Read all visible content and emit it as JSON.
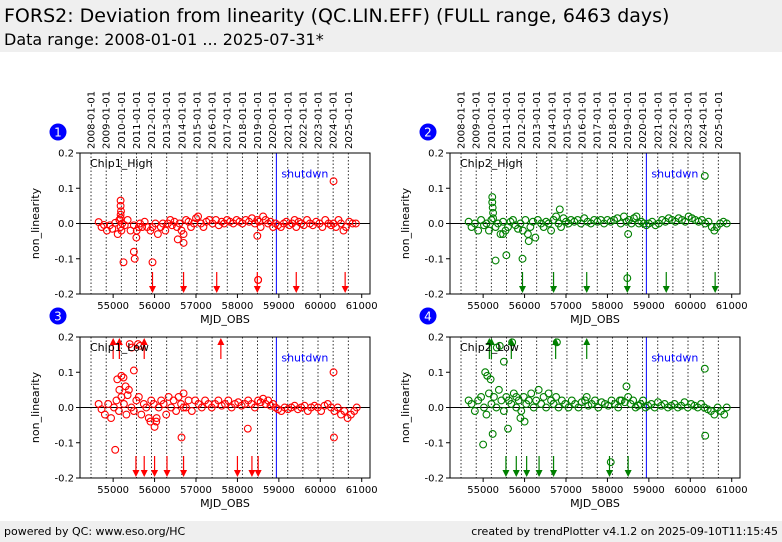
{
  "header": {
    "title": "FORS2: Deviation from linearity (QC.LIN.EFF) (FULL range, 6463 days)",
    "subtitle": "Data range: 2008-01-01 ... 2025-07-31*"
  },
  "footer": {
    "left": "powered by QC: www.eso.org/HC",
    "right": "created by trendPlotter v4.1.2 on 2025-09-10T11:15:45"
  },
  "colors": {
    "red": "#ff0000",
    "green": "#008000",
    "shutdown": "#0000ff",
    "badge": "#0000ff"
  },
  "chart_data": [
    {
      "type": "scatter",
      "badge": "1",
      "label": "Chip1_High",
      "color": "#ff0000",
      "xlabel": "MJD_OBS",
      "ylabel": "non_linearity",
      "xlim": [
        54200,
        61200
      ],
      "ylim": [
        -0.2,
        0.2
      ],
      "xticks": [
        55000,
        56000,
        57000,
        58000,
        59000,
        60000,
        61000
      ],
      "yticks": [
        -0.2,
        -0.1,
        0.0,
        0.1,
        0.2
      ],
      "shutdown": {
        "x": 58940,
        "label": "shutdwn"
      },
      "x": [
        54650,
        54720,
        54780,
        54850,
        54920,
        54980,
        55050,
        55110,
        55150,
        55180,
        55200,
        55220,
        55280,
        55350,
        55420,
        55500,
        55560,
        55620,
        55650,
        55700,
        55760,
        55820,
        55900,
        55950,
        56020,
        56080,
        56150,
        56200,
        56260,
        56320,
        56380,
        56420,
        56480,
        56540,
        56600,
        56650,
        56700,
        56760,
        56820,
        56880,
        56950,
        57000,
        57050,
        57120,
        57180,
        57250,
        57320,
        57400,
        57480,
        57550,
        57620,
        57680,
        57750,
        57820,
        57900,
        57980,
        58050,
        58120,
        58200,
        58280,
        58350,
        58420,
        58480,
        58520,
        58560,
        58620,
        58680,
        58740,
        58800,
        58860,
        58920,
        58980,
        59050,
        59120,
        59180,
        59250,
        59320,
        59380,
        59420,
        59480,
        59540,
        59600,
        59680,
        59750,
        59820,
        59900,
        59980,
        60050,
        60120,
        60200,
        60260,
        60320,
        60380,
        60440,
        60500,
        60560,
        60620,
        60700,
        60780,
        60860,
        55180,
        55180,
        55190,
        55180,
        55180,
        55250,
        55500,
        55520,
        55570,
        55950,
        56560,
        56700,
        58480,
        58500,
        58500,
        60320
      ],
      "y": [
        0.004,
        -0.01,
        -0.004,
        -0.02,
        -0.005,
        -0.015,
        0.002,
        -0.03,
        0.01,
        -0.01,
        -0.02,
        0.0,
        -0.005,
        0.01,
        -0.02,
        -0.005,
        -0.04,
        -0.01,
        0.0,
        -0.01,
        0.005,
        -0.01,
        -0.02,
        -0.01,
        0.0,
        -0.03,
        -0.01,
        0.0,
        -0.02,
        0.0,
        0.01,
        -0.005,
        0.005,
        -0.01,
        0.0,
        -0.02,
        -0.03,
        0.01,
        0.005,
        -0.01,
        0.0,
        0.015,
        0.02,
        0.0,
        -0.01,
        0.005,
        0.01,
        0.0,
        0.01,
        -0.005,
        0.005,
        0.0,
        0.01,
        0.005,
        0.0,
        0.01,
        0.005,
        0.0,
        0.01,
        0.005,
        0.015,
        0.0,
        0.01,
        0.005,
        -0.01,
        0.02,
        0.01,
        0.0,
        0.005,
        -0.01,
        0.0,
        -0.005,
        -0.01,
        0.0,
        0.005,
        -0.005,
        0.0,
        0.01,
        -0.01,
        0.005,
        0.0,
        -0.005,
        0.01,
        0.0,
        -0.005,
        0.005,
        0.0,
        -0.01,
        0.01,
        0.0,
        -0.005,
        0.0,
        -0.01,
        0.01,
        0.0,
        -0.02,
        -0.01,
        0.005,
        0.0,
        0.0,
        0.065,
        0.05,
        0.035,
        0.025,
        0.015,
        -0.11,
        -0.08,
        -0.1,
        -0.02,
        -0.11,
        -0.045,
        -0.055,
        -0.035,
        -0.16,
        -0.16,
        0.12
      ],
      "arrows_up": [],
      "arrows_down": [
        55950,
        56700,
        57500,
        58480,
        59420,
        60600
      ]
    },
    {
      "type": "scatter",
      "badge": "2",
      "label": "Chip2_High",
      "color": "#008000",
      "xlabel": "MJD_OBS",
      "ylabel": "non_linearity",
      "xlim": [
        54200,
        61200
      ],
      "ylim": [
        -0.2,
        0.2
      ],
      "xticks": [
        55000,
        56000,
        57000,
        58000,
        59000,
        60000,
        61000
      ],
      "yticks": [
        -0.2,
        -0.1,
        0.0,
        0.1,
        0.2
      ],
      "shutdown": {
        "x": 58940,
        "label": "shutdwn"
      },
      "x": [
        54650,
        54720,
        54800,
        54880,
        54950,
        55020,
        55080,
        55140,
        55200,
        55240,
        55300,
        55360,
        55420,
        55480,
        55540,
        55600,
        55660,
        55720,
        55780,
        55840,
        55900,
        55960,
        56020,
        56080,
        56140,
        56200,
        56260,
        56320,
        56400,
        56460,
        56520,
        56580,
        56640,
        56700,
        56760,
        56820,
        56880,
        56940,
        57000,
        57060,
        57120,
        57200,
        57280,
        57360,
        57440,
        57520,
        57600,
        57680,
        57760,
        57840,
        57920,
        58000,
        58080,
        58160,
        58240,
        58320,
        58400,
        58460,
        58520,
        58580,
        58640,
        58700,
        58760,
        58820,
        58880,
        58940,
        59000,
        59080,
        59160,
        59240,
        59320,
        59400,
        59480,
        59560,
        59640,
        59720,
        59800,
        59880,
        59960,
        60040,
        60120,
        60200,
        60280,
        60360,
        60440,
        60520,
        60580,
        60640,
        60720,
        60800,
        60880,
        55220,
        55220,
        55230,
        55240,
        55300,
        55480,
        55560,
        55950,
        56100,
        56850,
        58480,
        58500,
        60350
      ],
      "y": [
        0.005,
        -0.01,
        0.0,
        -0.02,
        0.01,
        -0.005,
        0.0,
        -0.02,
        0.01,
        0.015,
        -0.01,
        0.0,
        -0.03,
        0.005,
        -0.02,
        -0.01,
        0.005,
        0.01,
        -0.005,
        -0.015,
        0.0,
        -0.02,
        0.01,
        -0.03,
        -0.01,
        0.005,
        -0.04,
        0.01,
        0.0,
        -0.01,
        0.005,
        0.0,
        -0.02,
        0.01,
        0.02,
        0.0,
        -0.01,
        0.015,
        0.005,
        0.0,
        0.01,
        0.005,
        0.01,
        0.0,
        0.015,
        0.005,
        0.0,
        0.01,
        0.005,
        0.01,
        0.0,
        0.01,
        0.005,
        0.01,
        0.015,
        0.0,
        0.02,
        0.005,
        0.01,
        0.0,
        0.015,
        0.02,
        0.0,
        0.005,
        0.0,
        -0.005,
        0.0,
        0.005,
        -0.005,
        0.0,
        0.01,
        0.005,
        0.015,
        0.01,
        0.005,
        0.015,
        0.01,
        0.005,
        0.02,
        0.015,
        0.01,
        0.005,
        0.01,
        0.0,
        0.005,
        -0.01,
        -0.02,
        -0.01,
        0.0,
        0.005,
        0.0,
        0.075,
        0.06,
        0.045,
        0.03,
        -0.105,
        -0.03,
        -0.09,
        -0.1,
        -0.05,
        0.04,
        -0.155,
        -0.03,
        0.135
      ],
      "arrows_up": [],
      "arrows_down": [
        55950,
        56700,
        57500,
        58480,
        59420,
        60600
      ]
    },
    {
      "type": "scatter",
      "badge": "3",
      "label": "Chip1_Low",
      "color": "#ff0000",
      "xlabel": "MJD_OBS",
      "ylabel": "non_linearity",
      "xlim": [
        54200,
        61200
      ],
      "ylim": [
        -0.2,
        0.2
      ],
      "xticks": [
        55000,
        56000,
        57000,
        58000,
        59000,
        60000,
        61000
      ],
      "yticks": [
        -0.2,
        -0.1,
        0.0,
        0.1,
        0.2
      ],
      "shutdown": {
        "x": 58940,
        "label": "shutdwn"
      },
      "x": [
        54650,
        54720,
        54800,
        54880,
        54950,
        55020,
        55080,
        55140,
        55200,
        55260,
        55320,
        55380,
        55440,
        55500,
        55560,
        55620,
        55680,
        55740,
        55800,
        55860,
        55920,
        55980,
        56040,
        56100,
        56160,
        56220,
        56280,
        56340,
        56400,
        56460,
        56520,
        56580,
        56640,
        56700,
        56760,
        56820,
        56900,
        56980,
        57060,
        57140,
        57220,
        57300,
        57380,
        57460,
        57540,
        57620,
        57700,
        57780,
        57860,
        57940,
        58020,
        58100,
        58180,
        58260,
        58340,
        58420,
        58500,
        58560,
        58620,
        58680,
        58740,
        58800,
        58860,
        58920,
        58980,
        59060,
        59140,
        59220,
        59300,
        59380,
        59460,
        59540,
        59620,
        59700,
        59780,
        59860,
        59940,
        60020,
        60100,
        60180,
        60260,
        60340,
        60420,
        60500,
        60580,
        60660,
        60740,
        60820,
        60880,
        55050,
        55100,
        55150,
        55200,
        55250,
        55300,
        55350,
        55400,
        55450,
        55500,
        55600,
        55650,
        55900,
        56000,
        56050,
        56650,
        56700,
        58250,
        60320,
        60330
      ],
      "y": [
        0.01,
        -0.005,
        -0.02,
        0.01,
        -0.03,
        0.0,
        0.02,
        -0.01,
        0.03,
        0.01,
        -0.02,
        0.05,
        0.0,
        -0.01,
        0.02,
        0.03,
        -0.02,
        0.01,
        0.0,
        -0.03,
        0.02,
        0.01,
        -0.04,
        0.0,
        0.02,
        0.01,
        -0.02,
        0.03,
        0.0,
        0.02,
        -0.01,
        0.03,
        0.01,
        0.04,
        0.0,
        0.02,
        -0.01,
        0.02,
        0.01,
        0.0,
        0.02,
        0.01,
        0.0,
        0.01,
        0.02,
        0.005,
        0.01,
        0.02,
        0.0,
        0.01,
        0.015,
        0.005,
        0.01,
        0.02,
        0.01,
        0.0,
        0.02,
        0.015,
        0.025,
        0.01,
        0.02,
        0.005,
        0.01,
        0.0,
        -0.005,
        -0.01,
        0.0,
        -0.005,
        0.0,
        0.005,
        -0.005,
        0.0,
        0.005,
        -0.01,
        0.0,
        0.005,
        0.0,
        -0.01,
        0.005,
        0.01,
        0.0,
        -0.01,
        0.0,
        -0.02,
        -0.01,
        -0.03,
        -0.02,
        -0.01,
        0.0,
        -0.12,
        0.08,
        0.05,
        0.09,
        0.085,
        0.06,
        0.035,
        0.18,
        0.17,
        0.105,
        0.18,
        0.175,
        -0.04,
        -0.055,
        -0.03,
        -0.085,
        0.0,
        -0.06,
        0.1,
        -0.085
      ],
      "arrows_up": [
        55000,
        55150,
        55750,
        57600
      ],
      "arrows_down": [
        55550,
        55750,
        56000,
        56300,
        56700,
        58000,
        58350,
        58500
      ]
    },
    {
      "type": "scatter",
      "badge": "4",
      "label": "Chip2_Low",
      "color": "#008000",
      "xlabel": "MJD_OBS",
      "ylabel": "non_linearity",
      "xlim": [
        54200,
        61200
      ],
      "ylim": [
        -0.2,
        0.2
      ],
      "xticks": [
        55000,
        56000,
        57000,
        58000,
        59000,
        60000,
        61000
      ],
      "yticks": [
        -0.2,
        -0.1,
        0.0,
        0.1,
        0.2
      ],
      "shutdown": {
        "x": 58940,
        "label": "shutdwn"
      },
      "x": [
        54650,
        54720,
        54800,
        54880,
        54950,
        55020,
        55080,
        55140,
        55200,
        55260,
        55320,
        55380,
        55440,
        55500,
        55560,
        55620,
        55680,
        55740,
        55800,
        55860,
        55920,
        55980,
        56040,
        56100,
        56160,
        56220,
        56280,
        56340,
        56400,
        56460,
        56520,
        56580,
        56640,
        56700,
        56760,
        56820,
        56900,
        56980,
        57060,
        57140,
        57220,
        57300,
        57380,
        57460,
        57540,
        57620,
        57700,
        57780,
        57860,
        57940,
        58020,
        58100,
        58180,
        58260,
        58340,
        58420,
        58500,
        58560,
        58620,
        58680,
        58740,
        58800,
        58860,
        58920,
        58980,
        59060,
        59140,
        59220,
        59300,
        59380,
        59460,
        59540,
        59620,
        59700,
        59780,
        59860,
        59940,
        60020,
        60100,
        60180,
        60260,
        60340,
        60420,
        60500,
        60580,
        60660,
        60740,
        60820,
        60880,
        55000,
        55050,
        55100,
        55180,
        55230,
        55330,
        55400,
        55500,
        55600,
        55700,
        55800,
        55900,
        56000,
        56780,
        57500,
        58080,
        58300,
        58460,
        60350,
        60360
      ],
      "y": [
        0.02,
        0.01,
        -0.01,
        0.02,
        0.03,
        0.0,
        -0.02,
        0.04,
        0.01,
        0.03,
        0.0,
        0.05,
        0.02,
        -0.01,
        0.03,
        0.02,
        0.01,
        0.04,
        0.0,
        0.02,
        -0.01,
        0.03,
        0.01,
        0.02,
        0.04,
        0.0,
        0.02,
        0.05,
        0.01,
        0.03,
        0.0,
        0.04,
        0.02,
        0.01,
        0.03,
        0.0,
        0.02,
        0.01,
        0.0,
        0.02,
        0.01,
        0.0,
        0.015,
        0.02,
        0.005,
        0.01,
        0.02,
        0.0,
        0.015,
        0.01,
        0.005,
        0.02,
        0.01,
        0.0,
        0.02,
        0.015,
        0.03,
        0.01,
        0.02,
        0.0,
        0.005,
        0.01,
        0.02,
        0.0,
        0.005,
        0.01,
        0.0,
        0.015,
        0.005,
        0.01,
        0.0,
        0.005,
        0.01,
        0.0,
        0.005,
        0.015,
        0.0,
        0.01,
        0.005,
        0.0,
        0.01,
        0.0,
        -0.005,
        -0.01,
        -0.02,
        0.0,
        -0.01,
        -0.02,
        0.0,
        -0.105,
        0.1,
        0.09,
        0.08,
        -0.075,
        0.17,
        0.175,
        0.13,
        -0.06,
        0.185,
        0.03,
        -0.03,
        -0.04,
        0.185,
        0.03,
        -0.155,
        0.02,
        0.06,
        0.11,
        -0.08
      ],
      "arrows_up": [
        55150,
        55200,
        55680,
        56750,
        57500
      ],
      "arrows_down": [
        55550,
        55800,
        56050,
        56350,
        56700,
        58050,
        58500
      ]
    }
  ],
  "date_axis": {
    "labels": [
      "2008-01-01",
      "2009-01-01",
      "2010-01-01",
      "2011-01-01",
      "2012-01-01",
      "2013-01-01",
      "2014-01-01",
      "2015-01-01",
      "2016-01-01",
      "2017-01-01",
      "2018-01-01",
      "2019-01-01",
      "2020-01-01",
      "2021-01-01",
      "2022-01-01",
      "2023-01-01",
      "2024-01-01",
      "2025-01-01"
    ],
    "mjd": [
      54466,
      54832,
      55197,
      55562,
      55927,
      56293,
      56658,
      57023,
      57388,
      57754,
      58119,
      58484,
      58849,
      59215,
      59580,
      59945,
      60310,
      60676
    ]
  }
}
